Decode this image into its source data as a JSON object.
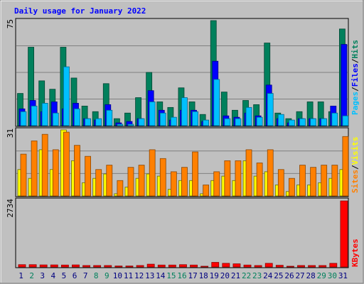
{
  "title": "Daily usage for January 2022",
  "colors": {
    "background": "#c0c0c0",
    "hits": "#00805c",
    "files": "#0000ff",
    "pages": "#00c0ff",
    "visits": "#ffff00",
    "sites": "#ff8000",
    "kbytes": "#ff0000",
    "weekday_label": "#000080",
    "weekend_label": "#00805c",
    "title": "#0000ff"
  },
  "chart_data": [
    {
      "type": "bar",
      "panel": "hits-files-pages",
      "ymax_label": "75",
      "legend": [
        "Pages",
        "Files",
        "Hits"
      ],
      "categories": [
        "1",
        "2",
        "3",
        "4",
        "5",
        "6",
        "7",
        "8",
        "9",
        "10",
        "11",
        "12",
        "13",
        "14",
        "15",
        "16",
        "17",
        "18",
        "19",
        "20",
        "21",
        "22",
        "23",
        "24",
        "25",
        "26",
        "27",
        "28",
        "29",
        "30",
        "31"
      ],
      "weekend": [
        false,
        true,
        false,
        false,
        false,
        false,
        false,
        true,
        true,
        false,
        false,
        false,
        false,
        false,
        true,
        true,
        false,
        false,
        false,
        false,
        false,
        true,
        true,
        false,
        false,
        false,
        false,
        false,
        true,
        true,
        false
      ],
      "series": [
        {
          "name": "Hits",
          "values": [
            23,
            56,
            32,
            26,
            56,
            34,
            14,
            10,
            30,
            5,
            9,
            20,
            38,
            17,
            13,
            27,
            17,
            8,
            75,
            24,
            11,
            18,
            15,
            59,
            9,
            5,
            10,
            17,
            17,
            10,
            69
          ]
        },
        {
          "name": "Files",
          "values": [
            12,
            18,
            10,
            17,
            12,
            16,
            5,
            4,
            15,
            2,
            3,
            5,
            25,
            11,
            4,
            11,
            11,
            3,
            46,
            7,
            6,
            9,
            7,
            29,
            5,
            2,
            5,
            5,
            5,
            14,
            58
          ]
        },
        {
          "name": "Pages",
          "values": [
            10,
            14,
            16,
            9,
            42,
            12,
            5,
            5,
            11,
            1,
            1,
            5,
            17,
            9,
            6,
            20,
            10,
            4,
            33,
            5,
            5,
            13,
            6,
            23,
            8,
            4,
            5,
            5,
            5,
            9,
            7
          ]
        }
      ]
    },
    {
      "type": "bar",
      "panel": "visits-sites",
      "ymax_label": "31",
      "legend": [
        "Sites",
        "Visits"
      ],
      "categories": [
        "1",
        "2",
        "3",
        "4",
        "5",
        "6",
        "7",
        "8",
        "9",
        "10",
        "11",
        "12",
        "13",
        "14",
        "15",
        "16",
        "17",
        "18",
        "19",
        "20",
        "21",
        "22",
        "23",
        "24",
        "25",
        "26",
        "27",
        "28",
        "29",
        "30",
        "31"
      ],
      "series": [
        {
          "name": "Visits",
          "values": [
            12,
            8,
            21,
            12,
            30,
            16,
            6,
            8,
            10,
            1,
            4,
            8,
            10,
            9,
            3,
            7,
            7,
            1,
            7,
            9,
            7,
            16,
            9,
            11,
            5,
            2,
            5,
            5,
            6,
            8,
            12
          ]
        },
        {
          "name": "Sites",
          "values": [
            19,
            25,
            28,
            21,
            29,
            23,
            18,
            12,
            14,
            7,
            13,
            14,
            21,
            17,
            11,
            13,
            20,
            5,
            11,
            16,
            16,
            21,
            15,
            21,
            12,
            8,
            14,
            13,
            14,
            14,
            27
          ]
        }
      ]
    },
    {
      "type": "bar",
      "panel": "kbytes",
      "ymax_label": "2734",
      "legend": [
        "KBytes"
      ],
      "categories": [
        "1",
        "2",
        "3",
        "4",
        "5",
        "6",
        "7",
        "8",
        "9",
        "10",
        "11",
        "12",
        "13",
        "14",
        "15",
        "16",
        "17",
        "18",
        "19",
        "20",
        "21",
        "22",
        "23",
        "24",
        "25",
        "26",
        "27",
        "28",
        "29",
        "30",
        "31"
      ],
      "series": [
        {
          "name": "KBytes",
          "values": [
            95,
            95,
            85,
            85,
            80,
            85,
            60,
            60,
            60,
            40,
            40,
            60,
            115,
            80,
            80,
            95,
            80,
            30,
            190,
            150,
            130,
            80,
            60,
            150,
            70,
            30,
            60,
            60,
            60,
            150,
            2734
          ]
        }
      ]
    }
  ]
}
